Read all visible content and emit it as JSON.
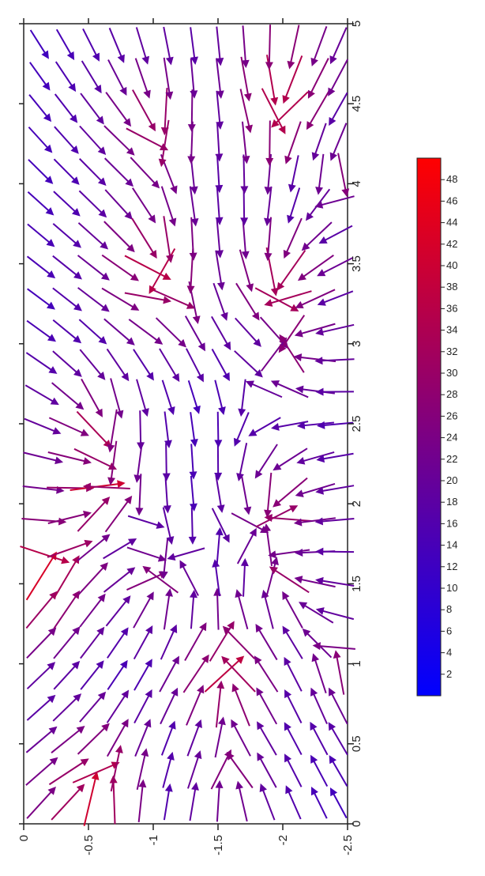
{
  "chart_data": {
    "type": "quiver",
    "title": "",
    "xlabel": "",
    "ylabel": "",
    "orientation": "rotated-90",
    "x_axis": {
      "range": [
        -2.5,
        0
      ],
      "ticks": [
        0,
        -0.5,
        -1,
        -1.5,
        -2,
        -2.5
      ],
      "tick_labels": [
        "0",
        "-0.5",
        "-1",
        "-1.5",
        "-2",
        "-2.5"
      ]
    },
    "y_axis": {
      "range": [
        0,
        5
      ],
      "ticks": [
        0,
        0.5,
        1,
        1.5,
        2,
        2.5,
        3,
        3.5,
        4,
        4.5,
        5
      ],
      "tick_labels": [
        "0",
        "0.5",
        "1",
        "1.5",
        "2",
        "2.5",
        "3",
        "3.5",
        "4",
        "4.5",
        "5"
      ]
    },
    "colorbar": {
      "range": [
        0,
        50
      ],
      "colors": {
        "low": "#0000ff",
        "high": "#ff0000"
      },
      "tick_values": [
        2,
        4,
        6,
        8,
        10,
        12,
        14,
        16,
        18,
        20,
        22,
        24,
        26,
        28,
        30,
        32,
        34,
        36,
        38,
        40,
        42,
        44,
        46,
        48
      ],
      "tick_labels": [
        "2",
        "4",
        "6",
        "8",
        "10",
        "12",
        "14",
        "16",
        "18",
        "20",
        "22",
        "24",
        "26",
        "28",
        "30",
        "32",
        "34",
        "36",
        "38",
        "40",
        "42",
        "44",
        "46",
        "48"
      ]
    },
    "grid": false,
    "field": {
      "grid_x": [
        -0.1,
        -0.3,
        -0.5,
        -0.7,
        -0.9,
        -1.1,
        -1.3,
        -1.5,
        -1.7,
        -1.9,
        -2.1,
        -2.3,
        -2.45
      ],
      "grid_y": [
        0.1,
        0.3,
        0.5,
        0.7,
        0.9,
        1.1,
        1.3,
        1.5,
        1.7,
        1.9,
        2.1,
        2.3,
        2.5,
        2.7,
        2.9,
        3.1,
        3.3,
        3.5,
        3.7,
        3.9,
        4.1,
        4.3,
        4.5,
        4.7,
        4.9
      ],
      "magnitude_range": [
        2,
        48
      ],
      "sinks": [
        {
          "x": -1.0,
          "y": 4.4,
          "strength": 30
        },
        {
          "x": -2.0,
          "y": 4.6,
          "strength": 38
        },
        {
          "x": -1.0,
          "y": 3.5,
          "strength": 36
        },
        {
          "x": -2.0,
          "y": 3.4,
          "strength": 34
        },
        {
          "x": -0.5,
          "y": 2.5,
          "strength": 26
        },
        {
          "x": -2.1,
          "y": 3.0,
          "strength": 24
        },
        {
          "x": -0.5,
          "y": 2.1,
          "strength": 34
        },
        {
          "x": -2.0,
          "y": 1.95,
          "strength": 28
        },
        {
          "x": -1.0,
          "y": 1.5,
          "strength": 22
        },
        {
          "x": -2.1,
          "y": 1.5,
          "strength": 22
        },
        {
          "x": -1.55,
          "y": 0.9,
          "strength": 34
        },
        {
          "x": -0.5,
          "y": 0.15,
          "strength": 38
        },
        {
          "x": -1.6,
          "y": 0.3,
          "strength": 22
        },
        {
          "x": -2.5,
          "y": 0.95,
          "strength": 22
        },
        {
          "x": -0.1,
          "y": 1.55,
          "strength": 40
        },
        {
          "x": -2.5,
          "y": 4.1,
          "strength": 20
        }
      ]
    }
  }
}
